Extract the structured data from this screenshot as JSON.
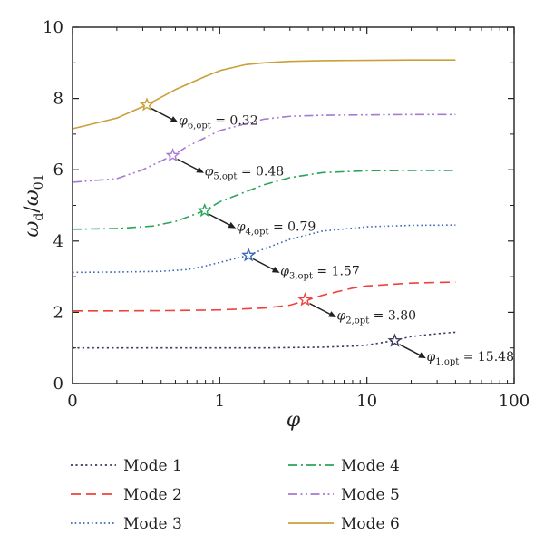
{
  "chart_data": {
    "type": "line",
    "title": "",
    "xlabel": "φ",
    "ylabel_main": "ω",
    "ylabel_sub_num": "d",
    "ylabel_slash": "/",
    "ylabel_den": "ω",
    "ylabel_sub_den": "01",
    "x_scale": "log",
    "xlim": [
      0.1,
      100
    ],
    "ylim": [
      0,
      10
    ],
    "x_ticks": [
      {
        "value": 0.1,
        "label": "0"
      },
      {
        "value": 1,
        "label": "1"
      },
      {
        "value": 10,
        "label": "10"
      },
      {
        "value": 100,
        "label": "100"
      }
    ],
    "y_ticks": [
      {
        "value": 0,
        "label": "0"
      },
      {
        "value": 2,
        "label": "2"
      },
      {
        "value": 4,
        "label": "4"
      },
      {
        "value": 6,
        "label": "6"
      },
      {
        "value": 8,
        "label": "8"
      },
      {
        "value": 10,
        "label": "10"
      }
    ],
    "grid": false,
    "legend_position": "bottom",
    "series": [
      {
        "name": "Mode 1",
        "color": "#3a3a5c",
        "dash": "dot",
        "x": [
          0.1,
          0.2,
          0.5,
          1,
          2,
          5,
          8,
          10,
          15,
          20,
          30,
          40
        ],
        "y": [
          1.0,
          1.0,
          1.0,
          1.0,
          1.0,
          1.02,
          1.05,
          1.08,
          1.2,
          1.32,
          1.4,
          1.44
        ],
        "opt": {
          "x": 15.48,
          "y": 1.2,
          "label_main": "φ",
          "label_sub": "1,opt",
          "label_value": " = 15.48"
        }
      },
      {
        "name": "Mode 2",
        "color": "#f0423a",
        "dash": "dash",
        "x": [
          0.1,
          0.2,
          0.5,
          1,
          2,
          3,
          4,
          5,
          8,
          10,
          20,
          40
        ],
        "y": [
          2.04,
          2.04,
          2.05,
          2.07,
          2.12,
          2.2,
          2.35,
          2.48,
          2.68,
          2.74,
          2.82,
          2.85
        ],
        "opt": {
          "x": 3.8,
          "y": 2.35,
          "label_main": "φ",
          "label_sub": "2,opt",
          "label_value": " = 3.80"
        }
      },
      {
        "name": "Mode 3",
        "color": "#3b68b5",
        "dash": "dotfine",
        "x": [
          0.1,
          0.2,
          0.4,
          0.6,
          0.8,
          1,
          1.57,
          2,
          3,
          5,
          10,
          20,
          40
        ],
        "y": [
          3.12,
          3.13,
          3.15,
          3.2,
          3.3,
          3.4,
          3.6,
          3.78,
          4.05,
          4.28,
          4.4,
          4.44,
          4.45
        ],
        "opt": {
          "x": 1.57,
          "y": 3.6,
          "label_main": "φ",
          "label_sub": "3,opt",
          "label_value": " = 1.57"
        }
      },
      {
        "name": "Mode 4",
        "color": "#2aa45a",
        "dash": "dashdot",
        "x": [
          0.1,
          0.2,
          0.35,
          0.5,
          0.79,
          1,
          2,
          3,
          5,
          10,
          20,
          40
        ],
        "y": [
          4.33,
          4.35,
          4.42,
          4.55,
          4.85,
          5.1,
          5.58,
          5.78,
          5.92,
          5.97,
          5.98,
          5.98
        ],
        "opt": {
          "x": 0.79,
          "y": 4.85,
          "label_main": "φ",
          "label_sub": "4,opt",
          "label_value": " = 0.79"
        }
      },
      {
        "name": "Mode 5",
        "color": "#a57ad0",
        "dash": "dashdotdot",
        "x": [
          0.1,
          0.2,
          0.3,
          0.48,
          0.6,
          1,
          2,
          3,
          5,
          10,
          20,
          40
        ],
        "y": [
          5.65,
          5.75,
          6.0,
          6.4,
          6.65,
          7.1,
          7.42,
          7.5,
          7.53,
          7.54,
          7.55,
          7.55
        ],
        "opt": {
          "x": 0.48,
          "y": 6.4,
          "label_main": "φ",
          "label_sub": "5,opt",
          "label_value": " = 0.48"
        }
      },
      {
        "name": "Mode 6",
        "color": "#c9a03a",
        "dash": "solid",
        "x": [
          0.1,
          0.2,
          0.32,
          0.5,
          0.8,
          1,
          1.5,
          2,
          3,
          5,
          10,
          20,
          40
        ],
        "y": [
          7.15,
          7.45,
          7.82,
          8.25,
          8.62,
          8.78,
          8.95,
          9.0,
          9.04,
          9.06,
          9.07,
          9.08,
          9.08
        ],
        "opt": {
          "x": 0.32,
          "y": 7.82,
          "label_main": "φ",
          "label_sub": "6,opt",
          "label_value": " = 0.32"
        }
      }
    ]
  }
}
